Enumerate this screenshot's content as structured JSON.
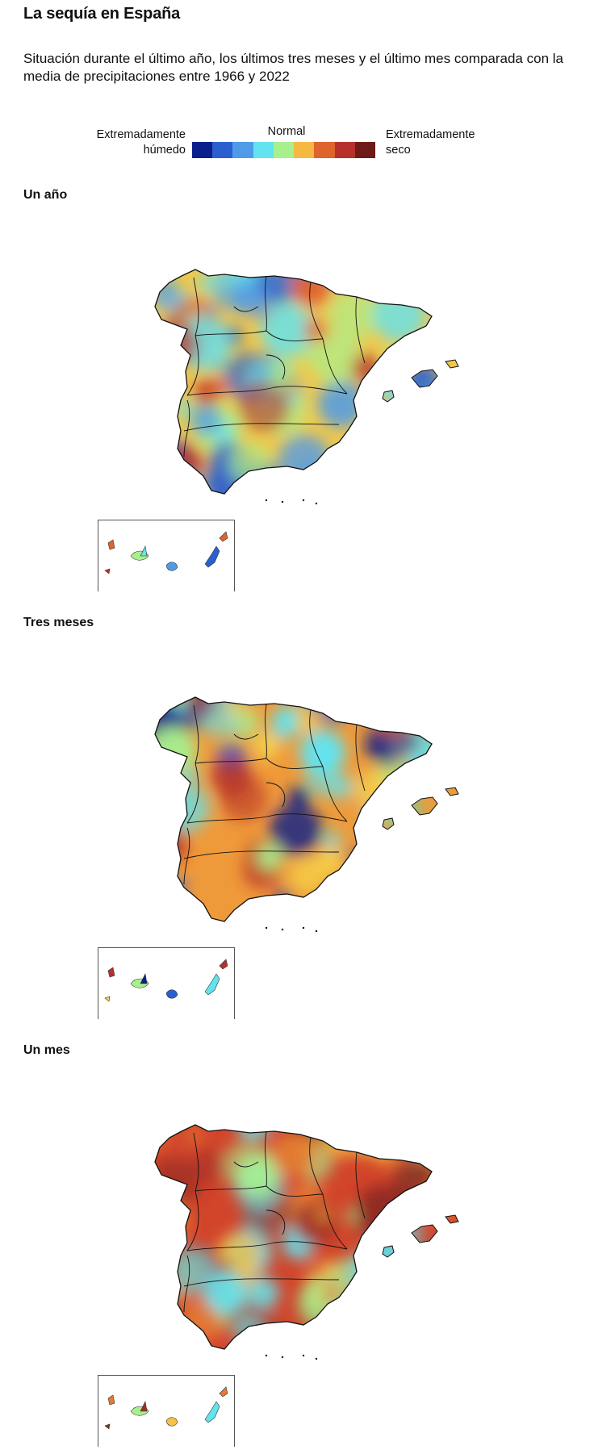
{
  "header": {
    "title": "La sequía en España",
    "subtitle": "Situación durante el último año, los últimos tres meses y el último mes comparada con la media de precipitaciones entre 1966 y 2022"
  },
  "legend": {
    "left_line1": "Extremadamente",
    "left_line2": "húmedo",
    "center": "Normal",
    "right_line1": "Extremadamente",
    "right_line2": "seco",
    "colors": [
      "#0b1f8a",
      "#2a5fd0",
      "#4f9be8",
      "#63e3ef",
      "#a8f08e",
      "#f5b840",
      "#e0622c",
      "#b8302a",
      "#6e1a18"
    ]
  },
  "panels": [
    {
      "label": "Un año",
      "base_color": "#f3c84a",
      "palette": [
        "#63e3ef",
        "#4f9be8",
        "#2a5fd0",
        "#e0622c",
        "#b8302a",
        "#a8f08e"
      ]
    },
    {
      "label": "Tres meses",
      "base_color": "#ef9a3a",
      "palette": [
        "#0b1f8a",
        "#2a5fd0",
        "#63e3ef",
        "#b8302a",
        "#f5d44a",
        "#a8f08e"
      ]
    },
    {
      "label": "Un mes",
      "base_color": "#d2452b",
      "palette": [
        "#a23026",
        "#f5c444",
        "#63e3ef",
        "#e47a33",
        "#8e2a22",
        "#a8f08e"
      ]
    }
  ]
}
